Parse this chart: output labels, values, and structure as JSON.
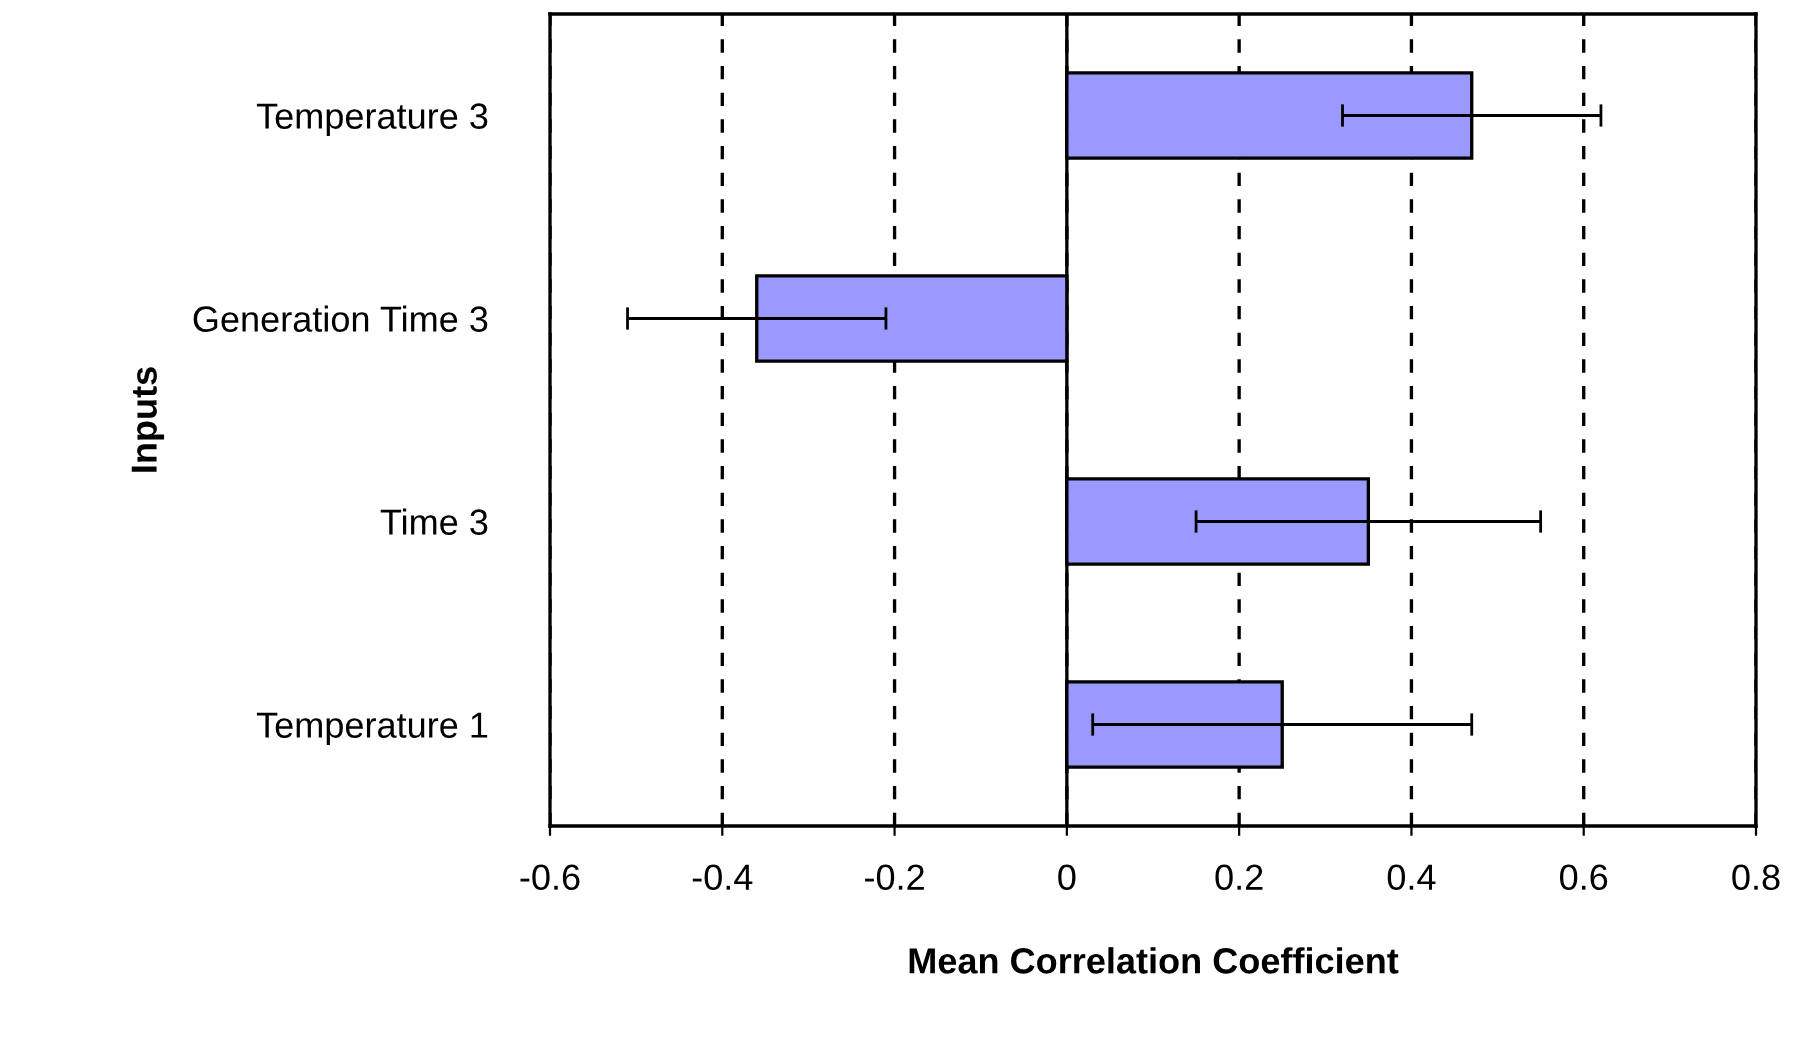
{
  "chart_data": {
    "type": "bar",
    "orientation": "horizontal",
    "xlabel": "Mean Correlation Coefficient",
    "ylabel": "Inputs",
    "categories": [
      "Temperature 3",
      "Generation Time 3",
      "Time 3",
      "Temperature 1"
    ],
    "values": [
      0.47,
      -0.36,
      0.35,
      0.25
    ],
    "errors": [
      0.15,
      0.15,
      0.2,
      0.22
    ],
    "color": "#9999ff",
    "xlim": [
      -0.6,
      0.8
    ],
    "xticks": [
      -0.6,
      -0.4,
      -0.2,
      0,
      0.2,
      0.4,
      0.6,
      0.8
    ],
    "grid": "x"
  }
}
